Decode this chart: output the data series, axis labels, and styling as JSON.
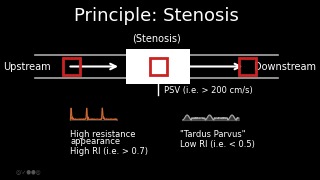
{
  "bg_color": "#000000",
  "title": "Principle: Stenosis",
  "title_color": "#ffffff",
  "title_fontsize": 13,
  "stenosis_label": "(Stenosis)",
  "stenosis_label_color": "#ffffff",
  "stenosis_label_fontsize": 7,
  "upstream_label": "Upstream",
  "downstream_label": "Downstream",
  "label_color": "#ffffff",
  "label_fontsize": 7,
  "psv_text": "PSV (i.e. > 200 cm/s)",
  "psv_color": "#ffffff",
  "psv_fontsize": 6,
  "hr_text1": "High resistance",
  "hr_text2": "appearance",
  "hr_text3": "High RI (i.e. > 0.7)",
  "hr_color": "#ffffff",
  "hr_fontsize": 6,
  "tp_text1": "\"Tardus Parvus\"",
  "tp_text2": "Low RI (i.e. < 0.5)",
  "tp_color": "#ffffff",
  "tp_fontsize": 6,
  "line_color": "#aaaaaa",
  "box_color": "#cc2222",
  "white_rect_color": "#ffffff",
  "arrow_color": "#ffffff"
}
